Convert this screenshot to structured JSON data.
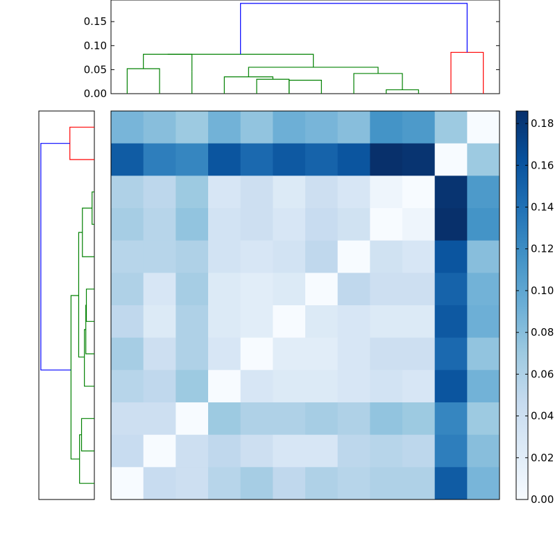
{
  "chart_data": {
    "type": "heatmap",
    "title": "",
    "xlabel": "",
    "ylabel": "",
    "rows": 12,
    "cols": 12,
    "colormap": "Blues",
    "vmin": 0.0,
    "vmax": 0.186,
    "values": [
      [
        0.087,
        0.08,
        0.07,
        0.09,
        0.075,
        0.092,
        0.087,
        0.08,
        0.115,
        0.11,
        0.07,
        0.0
      ],
      [
        0.155,
        0.13,
        0.125,
        0.16,
        0.145,
        0.157,
        0.15,
        0.16,
        0.186,
        0.183,
        0.0,
        0.07
      ],
      [
        0.06,
        0.052,
        0.07,
        0.03,
        0.04,
        0.025,
        0.04,
        0.03,
        0.008,
        0.0,
        0.183,
        0.11
      ],
      [
        0.065,
        0.055,
        0.075,
        0.035,
        0.04,
        0.03,
        0.045,
        0.037,
        0.0,
        0.008,
        0.186,
        0.115
      ],
      [
        0.055,
        0.055,
        0.06,
        0.035,
        0.03,
        0.035,
        0.05,
        0.0,
        0.037,
        0.03,
        0.16,
        0.08
      ],
      [
        0.06,
        0.03,
        0.065,
        0.025,
        0.02,
        0.025,
        0.0,
        0.05,
        0.04,
        0.04,
        0.15,
        0.09
      ],
      [
        0.05,
        0.025,
        0.06,
        0.025,
        0.02,
        0.0,
        0.025,
        0.03,
        0.025,
        0.025,
        0.157,
        0.092
      ],
      [
        0.065,
        0.04,
        0.06,
        0.03,
        0.0,
        0.02,
        0.02,
        0.03,
        0.04,
        0.04,
        0.145,
        0.075
      ],
      [
        0.055,
        0.05,
        0.07,
        0.0,
        0.03,
        0.025,
        0.025,
        0.03,
        0.035,
        0.03,
        0.16,
        0.09
      ],
      [
        0.04,
        0.04,
        0.0,
        0.07,
        0.06,
        0.06,
        0.065,
        0.06,
        0.075,
        0.07,
        0.125,
        0.07
      ],
      [
        0.045,
        0.0,
        0.04,
        0.05,
        0.04,
        0.03,
        0.03,
        0.052,
        0.055,
        0.052,
        0.13,
        0.08
      ],
      [
        0.0,
        0.045,
        0.04,
        0.055,
        0.065,
        0.05,
        0.06,
        0.055,
        0.06,
        0.06,
        0.155,
        0.087
      ]
    ],
    "top_dendrogram": {
      "ylim": [
        0,
        0.195
      ],
      "yticks": [
        "0.00",
        "0.05",
        "0.10",
        "0.15"
      ],
      "ytick_values": [
        0.0,
        0.05,
        0.1,
        0.15
      ],
      "links": [
        {
          "x": [
            0.5,
            0.5,
            1.5,
            1.5
          ],
          "y": [
            0.0,
            0.052,
            0.052,
            0.0
          ],
          "color": "#008000"
        },
        {
          "x": [
            1.0,
            1.0,
            2.5,
            2.5
          ],
          "y": [
            0.052,
            0.082,
            0.082,
            0.045
          ],
          "color": "#008000"
        },
        {
          "x": [
            2.5,
            2.5,
            2.5,
            2.5
          ],
          "y": [
            0.0,
            0.045,
            0.045,
            0.0
          ],
          "color": "#008000"
        },
        {
          "x": [
            4.5,
            4.5,
            5.5,
            5.5
          ],
          "y": [
            0.0,
            0.03,
            0.03,
            0.0
          ],
          "color": "#008000"
        },
        {
          "x": [
            5.5,
            5.5,
            6.5,
            6.5
          ],
          "y": [
            0.0,
            0.028,
            0.028,
            0.0
          ],
          "color": "#008000"
        },
        {
          "x": [
            3.5,
            3.5,
            5.0,
            5.0
          ],
          "y": [
            0.0,
            0.035,
            0.035,
            0.03
          ],
          "color": "#008000"
        },
        {
          "x": [
            8.5,
            8.5,
            9.5,
            9.5
          ],
          "y": [
            0.0,
            0.008,
            0.008,
            0.0
          ],
          "color": "#008000"
        },
        {
          "x": [
            7.5,
            7.5,
            9.0,
            9.0
          ],
          "y": [
            0.0,
            0.042,
            0.042,
            0.008
          ],
          "color": "#008000"
        },
        {
          "x": [
            4.25,
            4.25,
            8.25,
            8.25
          ],
          "y": [
            0.035,
            0.055,
            0.055,
            0.042
          ],
          "color": "#008000"
        },
        {
          "x": [
            1.75,
            1.75,
            6.25,
            6.25
          ],
          "y": [
            0.082,
            0.082,
            0.082,
            0.055
          ],
          "color": "#008000"
        },
        {
          "x": [
            10.5,
            10.5,
            11.5,
            11.5
          ],
          "y": [
            0.0,
            0.086,
            0.086,
            0.0
          ],
          "color": "#ff0000"
        },
        {
          "x": [
            4.0,
            4.0,
            11.0,
            11.0
          ],
          "y": [
            0.082,
            0.188,
            0.188,
            0.086
          ],
          "color": "#0000ff"
        }
      ]
    },
    "left_dendrogram": {
      "xlim": [
        0,
        0.195
      ],
      "links": [
        {
          "y": [
            0.5,
            0.5,
            1.5,
            1.5
          ],
          "x": [
            0.0,
            0.086,
            0.086,
            0.0
          ],
          "color": "#ff0000"
        },
        {
          "y": [
            1.0,
            1.0,
            8.0,
            8.0
          ],
          "x": [
            0.086,
            0.188,
            0.188,
            0.082
          ],
          "color": "#0000ff"
        },
        {
          "y": [
            2.5,
            2.5,
            3.5,
            3.5
          ],
          "x": [
            0.0,
            0.008,
            0.008,
            0.0
          ],
          "color": "#008000"
        },
        {
          "y": [
            3.0,
            3.0,
            4.5,
            4.5
          ],
          "x": [
            0.008,
            0.042,
            0.042,
            0.0
          ],
          "color": "#008000"
        },
        {
          "y": [
            5.5,
            5.5,
            6.5,
            6.5
          ],
          "x": [
            0.0,
            0.028,
            0.028,
            0.0
          ],
          "color": "#008000"
        },
        {
          "y": [
            6.0,
            6.0,
            7.5,
            7.5
          ],
          "x": [
            0.028,
            0.03,
            0.03,
            0.0
          ],
          "color": "#008000"
        },
        {
          "y": [
            6.75,
            6.75,
            8.5,
            8.5
          ],
          "x": [
            0.03,
            0.035,
            0.035,
            0.0
          ],
          "color": "#008000"
        },
        {
          "y": [
            3.75,
            3.75,
            7.6,
            7.6
          ],
          "x": [
            0.042,
            0.055,
            0.055,
            0.035
          ],
          "color": "#008000"
        },
        {
          "y": [
            9.5,
            9.5,
            10.5,
            10.5
          ],
          "x": [
            0.0,
            0.045,
            0.045,
            0.0
          ],
          "color": "#008000"
        },
        {
          "y": [
            10.0,
            10.0,
            11.5,
            11.5
          ],
          "x": [
            0.045,
            0.052,
            0.052,
            0.0
          ],
          "color": "#008000"
        },
        {
          "y": [
            5.7,
            5.7,
            10.75,
            10.75
          ],
          "x": [
            0.055,
            0.082,
            0.082,
            0.052
          ],
          "color": "#008000"
        }
      ]
    },
    "colorbar": {
      "ticks": [
        "0.00",
        "0.02",
        "0.04",
        "0.06",
        "0.08",
        "0.10",
        "0.12",
        "0.14",
        "0.16",
        "0.18"
      ],
      "tick_values": [
        0.0,
        0.02,
        0.04,
        0.06,
        0.08,
        0.1,
        0.12,
        0.14,
        0.16,
        0.18
      ]
    }
  }
}
